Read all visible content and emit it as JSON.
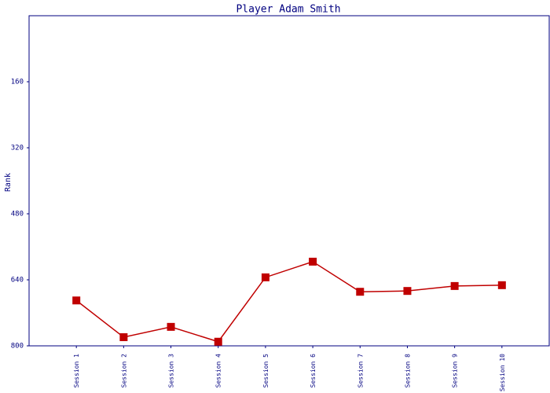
{
  "chart_data": {
    "type": "line",
    "title": "Player Adam Smith",
    "y_label": "Rank",
    "categories": [
      "Session 1",
      "Session 2",
      "Session 3",
      "Session 4",
      "Session 5",
      "Session 6",
      "Session 7",
      "Session 8",
      "Session 9",
      "Session 10"
    ],
    "series": [
      {
        "color": "#c00000",
        "values": [
          690,
          779,
          754,
          790,
          634,
          596,
          669,
          667,
          655,
          653
        ]
      }
    ],
    "ylim": [
      800,
      0
    ],
    "yticks": [
      160,
      320,
      480,
      640,
      800
    ],
    "grid": false
  }
}
